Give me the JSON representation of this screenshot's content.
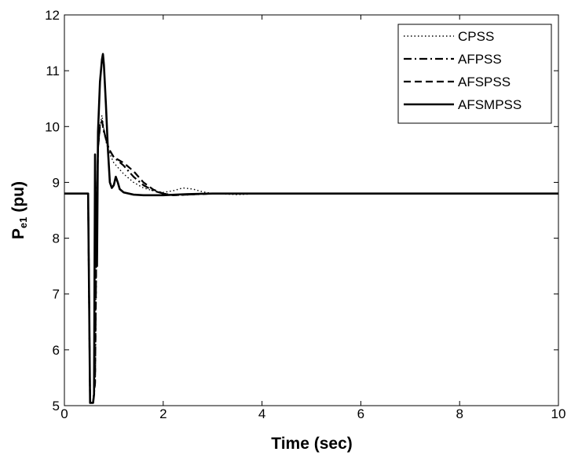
{
  "chart_data": {
    "type": "line",
    "title": "",
    "xlabel": "Time (sec)",
    "ylabel_main": "P",
    "ylabel_sub": "e1",
    "ylabel_rest": " (pu)",
    "xlim": [
      0,
      10
    ],
    "ylim": [
      5,
      12
    ],
    "xticks": [
      0,
      2,
      4,
      6,
      8,
      10
    ],
    "yticks": [
      5,
      6,
      7,
      8,
      9,
      10,
      11,
      12
    ],
    "grid": false,
    "legend_position": "top-right",
    "series": [
      {
        "name": "CPSS",
        "style": "dotted",
        "color": "#000000",
        "points": [
          [
            0,
            8.8
          ],
          [
            0.48,
            8.8
          ],
          [
            0.5,
            6.95
          ],
          [
            0.52,
            5.05
          ],
          [
            0.58,
            5.05
          ],
          [
            0.62,
            5.4
          ],
          [
            0.65,
            8.1
          ],
          [
            0.68,
            9.55
          ],
          [
            0.72,
            10.0
          ],
          [
            0.76,
            10.2
          ],
          [
            0.8,
            9.95
          ],
          [
            0.85,
            9.7
          ],
          [
            0.9,
            9.55
          ],
          [
            1.0,
            9.35
          ],
          [
            1.2,
            9.15
          ],
          [
            1.4,
            9.0
          ],
          [
            1.6,
            8.9
          ],
          [
            1.8,
            8.85
          ],
          [
            2.0,
            8.82
          ],
          [
            2.2,
            8.85
          ],
          [
            2.4,
            8.9
          ],
          [
            2.6,
            8.88
          ],
          [
            2.8,
            8.83
          ],
          [
            3.0,
            8.8
          ],
          [
            3.5,
            8.78
          ],
          [
            4.0,
            8.8
          ],
          [
            4.5,
            8.8
          ],
          [
            10,
            8.8
          ]
        ]
      },
      {
        "name": "AFPSS",
        "style": "dashdot",
        "color": "#000000",
        "points": [
          [
            0,
            8.8
          ],
          [
            0.48,
            8.8
          ],
          [
            0.5,
            6.95
          ],
          [
            0.52,
            5.05
          ],
          [
            0.58,
            5.05
          ],
          [
            0.62,
            5.4
          ],
          [
            0.65,
            8.1
          ],
          [
            0.68,
            9.6
          ],
          [
            0.72,
            10.05
          ],
          [
            0.76,
            10.1
          ],
          [
            0.8,
            9.9
          ],
          [
            0.9,
            9.6
          ],
          [
            1.0,
            9.45
          ],
          [
            1.2,
            9.3
          ],
          [
            1.4,
            9.1
          ],
          [
            1.6,
            8.95
          ],
          [
            1.8,
            8.85
          ],
          [
            2.0,
            8.8
          ],
          [
            2.2,
            8.77
          ],
          [
            2.5,
            8.78
          ],
          [
            3.0,
            8.8
          ],
          [
            10,
            8.8
          ]
        ]
      },
      {
        "name": "AFSPSS",
        "style": "dashed",
        "color": "#000000",
        "points": [
          [
            0,
            8.8
          ],
          [
            0.48,
            8.8
          ],
          [
            0.5,
            6.95
          ],
          [
            0.52,
            5.05
          ],
          [
            0.58,
            5.05
          ],
          [
            0.62,
            5.4
          ],
          [
            0.65,
            8.1
          ],
          [
            0.68,
            9.6
          ],
          [
            0.72,
            10.0
          ],
          [
            0.76,
            10.1
          ],
          [
            0.82,
            9.85
          ],
          [
            0.9,
            9.6
          ],
          [
            1.0,
            9.45
          ],
          [
            1.2,
            9.35
          ],
          [
            1.4,
            9.2
          ],
          [
            1.6,
            9.0
          ],
          [
            1.8,
            8.87
          ],
          [
            2.0,
            8.8
          ],
          [
            2.2,
            8.77
          ],
          [
            2.5,
            8.78
          ],
          [
            3.0,
            8.8
          ],
          [
            10,
            8.8
          ]
        ]
      },
      {
        "name": "AFSMPSS",
        "style": "solid",
        "color": "#000000",
        "points": [
          [
            0,
            8.8
          ],
          [
            0.48,
            8.8
          ],
          [
            0.5,
            6.95
          ],
          [
            0.52,
            5.05
          ],
          [
            0.58,
            5.05
          ],
          [
            0.6,
            5.2
          ],
          [
            0.62,
            9.5
          ],
          [
            0.64,
            8.0
          ],
          [
            0.66,
            7.5
          ],
          [
            0.68,
            9.9
          ],
          [
            0.72,
            10.8
          ],
          [
            0.76,
            11.2
          ],
          [
            0.78,
            11.3
          ],
          [
            0.8,
            11.1
          ],
          [
            0.84,
            10.4
          ],
          [
            0.88,
            9.6
          ],
          [
            0.92,
            9.0
          ],
          [
            0.96,
            8.9
          ],
          [
            1.0,
            8.95
          ],
          [
            1.04,
            9.1
          ],
          [
            1.08,
            9.0
          ],
          [
            1.12,
            8.88
          ],
          [
            1.2,
            8.82
          ],
          [
            1.4,
            8.78
          ],
          [
            1.6,
            8.77
          ],
          [
            2.0,
            8.77
          ],
          [
            2.5,
            8.79
          ],
          [
            3.0,
            8.8
          ],
          [
            10,
            8.8
          ]
        ]
      }
    ]
  }
}
